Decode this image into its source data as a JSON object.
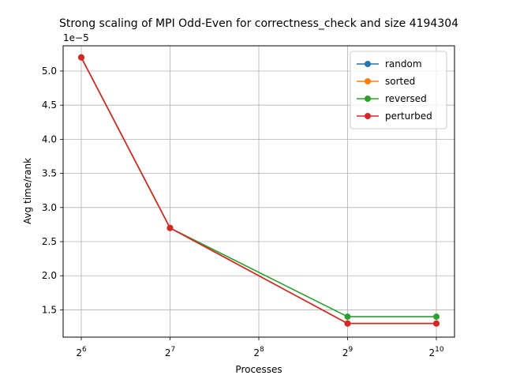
{
  "chart_data": {
    "type": "line",
    "title": "Strong scaling of MPI Odd-Even for correctness_check and size 4194304",
    "xlabel": "Processes",
    "ylabel": "Avg time/rank",
    "y_offset_label": "1e−5",
    "x_scale": "log2",
    "x": [
      64,
      128,
      256,
      512,
      1024
    ],
    "x_tick_labels": [
      {
        "base": "2",
        "exp": "6"
      },
      {
        "base": "2",
        "exp": "7"
      },
      {
        "base": "2",
        "exp": "8"
      },
      {
        "base": "2",
        "exp": "9"
      },
      {
        "base": "2",
        "exp": "10"
      }
    ],
    "y_ticks": [
      1.5,
      2.0,
      2.5,
      3.0,
      3.5,
      4.0,
      4.5,
      5.0
    ],
    "y_tick_labels": [
      "1.5",
      "2.0",
      "2.5",
      "3.0",
      "3.5",
      "4.0",
      "4.5",
      "5.0"
    ],
    "ylim": [
      1.1,
      5.37
    ],
    "grid": true,
    "legend_position": "top-right",
    "series": [
      {
        "name": "random",
        "color": "#1f77b4",
        "x": [
          64,
          128,
          512,
          1024
        ],
        "values": [
          5.2,
          2.7,
          1.3,
          1.3
        ]
      },
      {
        "name": "sorted",
        "color": "#ff7f0e",
        "x": [
          64,
          128,
          512,
          1024
        ],
        "values": [
          5.2,
          2.7,
          1.3,
          1.3
        ]
      },
      {
        "name": "reversed",
        "color": "#2ca02c",
        "x": [
          64,
          128,
          512,
          1024
        ],
        "values": [
          5.2,
          2.7,
          1.4,
          1.4
        ]
      },
      {
        "name": "perturbed",
        "color": "#d62728",
        "x": [
          64,
          128,
          512,
          1024
        ],
        "values": [
          5.2,
          2.7,
          1.3,
          1.3
        ]
      }
    ]
  }
}
